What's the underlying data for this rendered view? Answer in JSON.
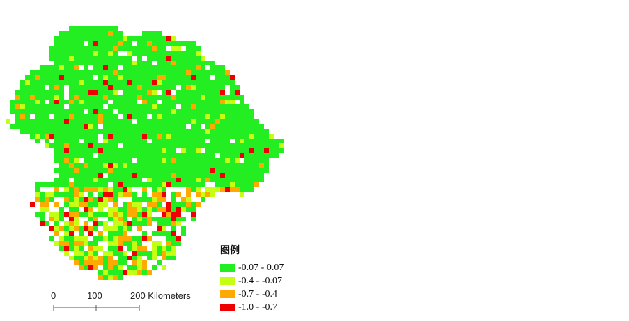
{
  "legend": {
    "title": "图例",
    "items": [
      {
        "label": "-0.07 - 0.07",
        "color": "#22ee22"
      },
      {
        "label": "-0.4 - -0.07",
        "color": "#c4ff14"
      },
      {
        "label": "-0.7 - -0.4",
        "color": "#ffaa00"
      },
      {
        "label": "-1.0 - -0.7",
        "color": "#ee0000"
      }
    ]
  },
  "scale_bar": {
    "ticks": [
      "0",
      "100",
      "200 Kilometers"
    ]
  }
}
